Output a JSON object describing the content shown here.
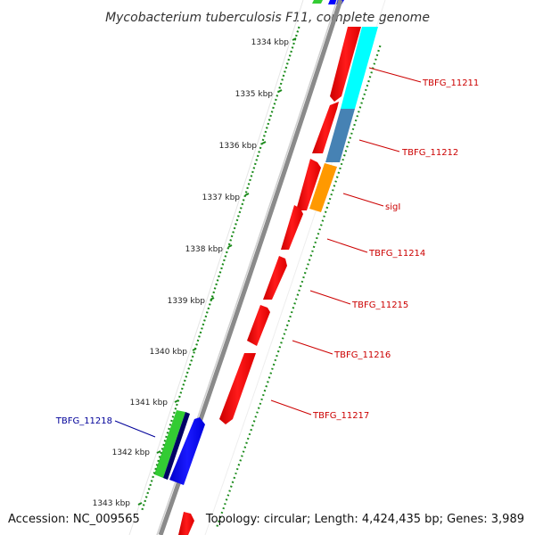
{
  "title": "Mycobacterium tuberculosis F11, complete genome",
  "accession": "Accession: NC_009565",
  "topology": "Topology: circular; Length: 4,424,435 bp; Genes: 3,989",
  "ticks": [
    "1334 kbp",
    "1335 kbp",
    "1336 kbp",
    "1337 kbp",
    "1338 kbp",
    "1339 kbp",
    "1340 kbp",
    "1341 kbp",
    "1342 kbp",
    "1343 kbp"
  ],
  "gene_labels": [
    {
      "text": "TBFG_11211",
      "color": "#cc0000"
    },
    {
      "text": "TBFG_11212",
      "color": "#cc0000"
    },
    {
      "text": "sigI",
      "color": "#cc0000"
    },
    {
      "text": "TBFG_11214",
      "color": "#cc0000"
    },
    {
      "text": "TBFG_11215",
      "color": "#cc0000"
    },
    {
      "text": "TBFG_11216",
      "color": "#cc0000"
    },
    {
      "text": "TBFG_11217",
      "color": "#cc0000"
    },
    {
      "text": "TBFG_11218",
      "color": "#000099"
    }
  ],
  "colors": {
    "backbone": "#8a8a8a",
    "forward_cds": "#ff0000",
    "reverse_cds": "#0000ff",
    "gc_skew_tick": "#1a8a1a",
    "cyan_track": "#00ffff",
    "steelblue_track": "#4682b4",
    "orange_track": "#ff9900",
    "green_track": "#33cc33",
    "navy_track": "#000066"
  }
}
